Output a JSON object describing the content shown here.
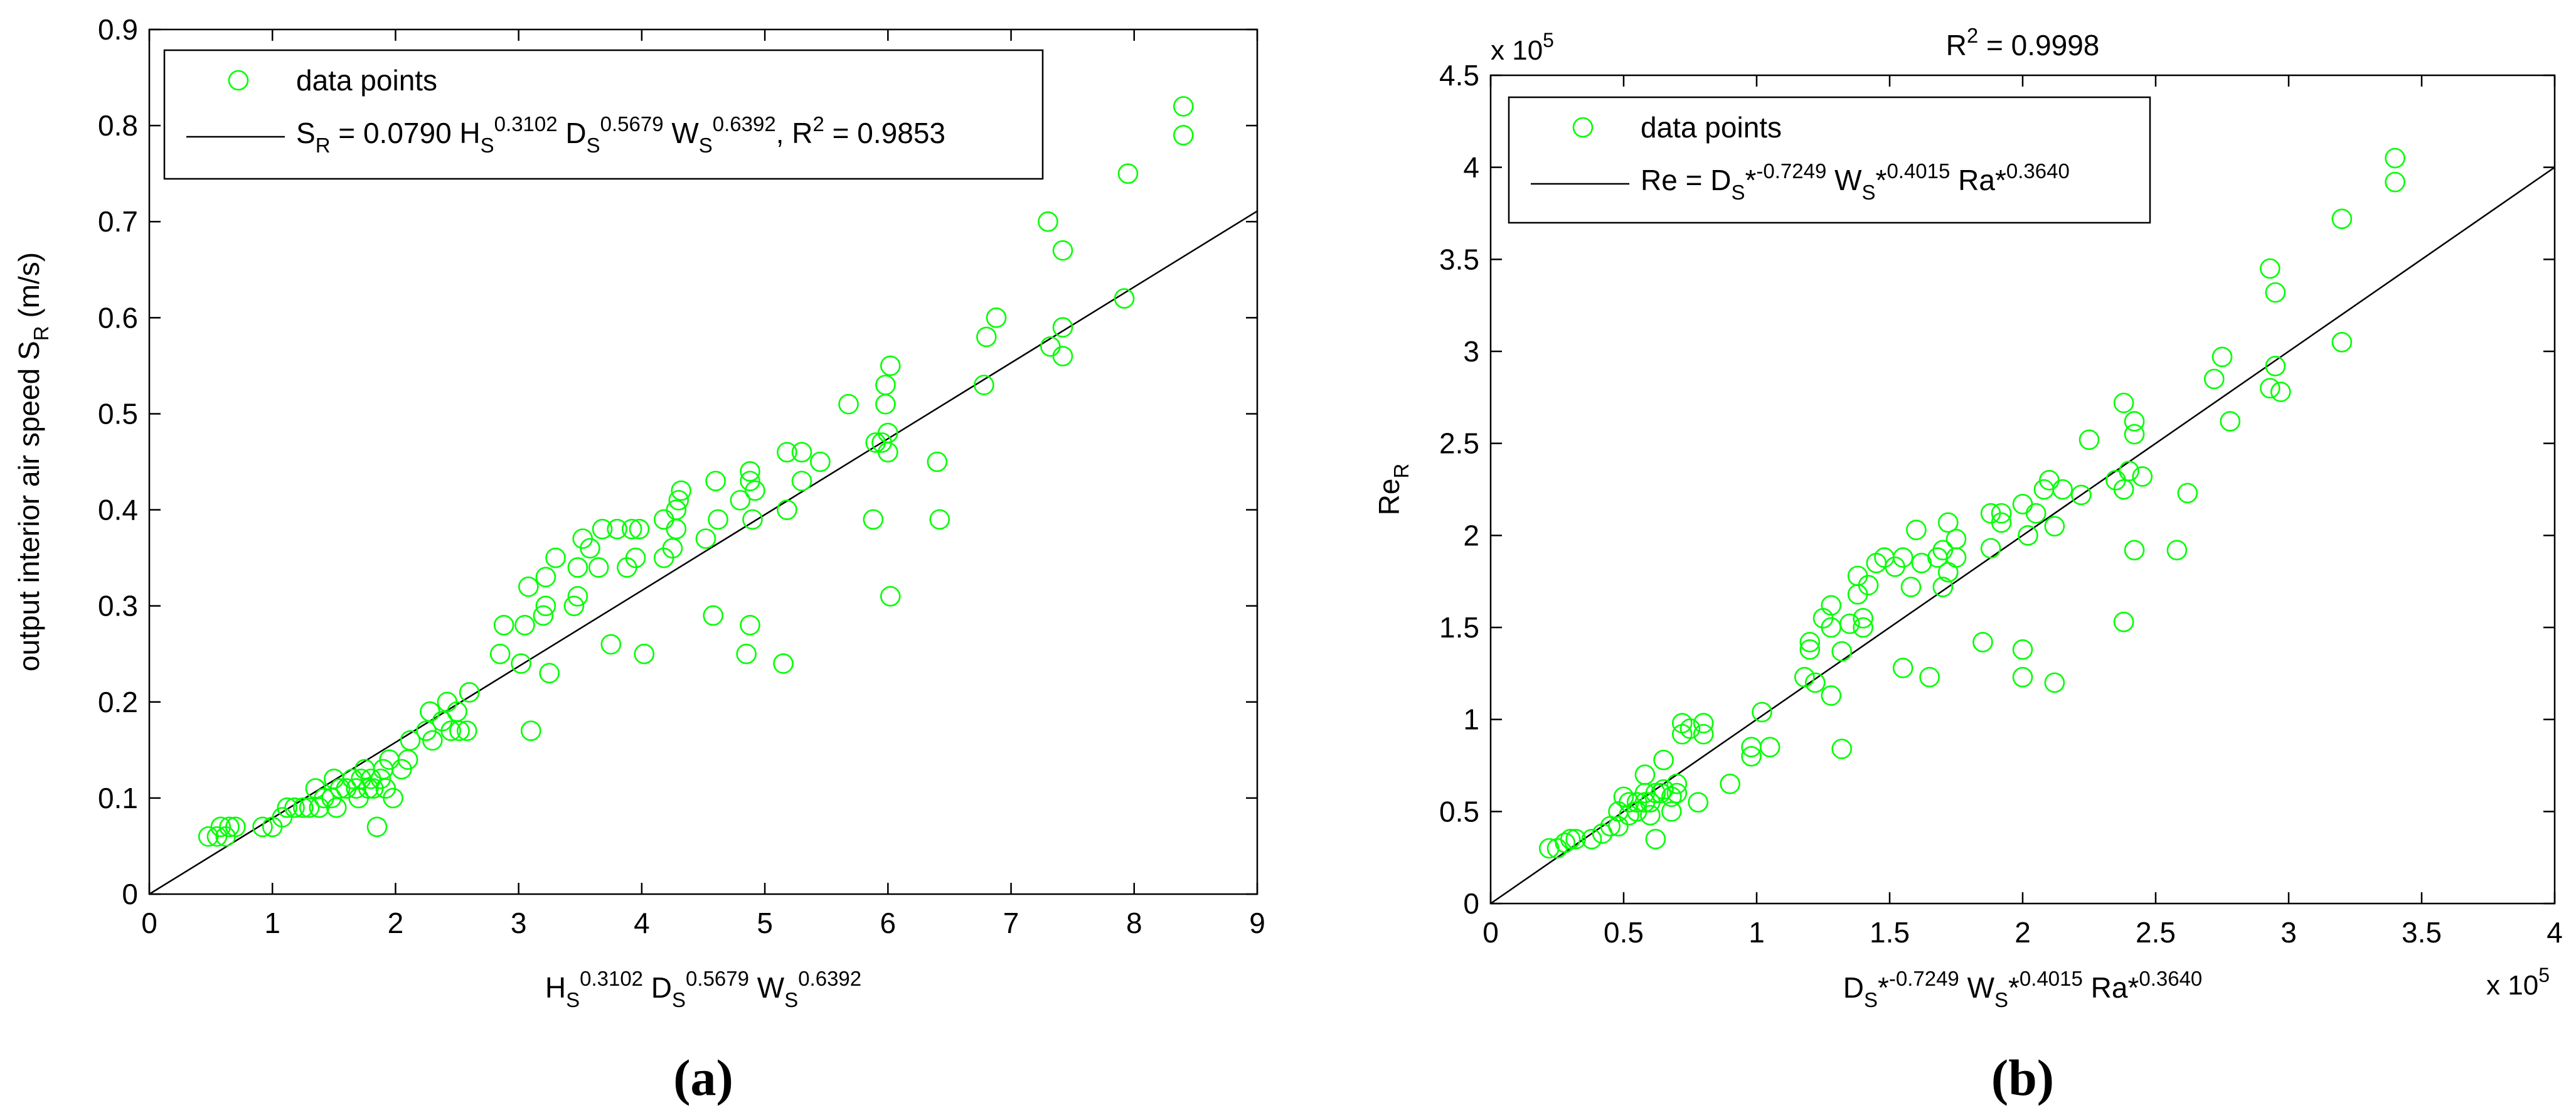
{
  "chart_data": [
    {
      "type": "scatter",
      "panel_label": "a",
      "title": "",
      "ylabel": {
        "text": "output interior air speed S",
        "sub": "R",
        "suffix": " (m/s)"
      },
      "xlabel": {
        "parts": [
          {
            "base": "H",
            "sub": "S",
            "sup": "0.3102"
          },
          {
            "base": " D",
            "sub": "S",
            "sup": "0.5679"
          },
          {
            "base": " W",
            "sub": "S",
            "sup": "0.6392"
          }
        ]
      },
      "xlim": [
        0,
        9
      ],
      "ylim": [
        0,
        0.9
      ],
      "xticks": [
        0,
        1,
        2,
        3,
        4,
        5,
        6,
        7,
        8,
        9
      ],
      "xtick_labels": [
        "0",
        "1",
        "2",
        "3",
        "4",
        "5",
        "6",
        "7",
        "8",
        "9"
      ],
      "yticks": [
        0,
        0.1,
        0.2,
        0.3,
        0.4,
        0.5,
        0.6,
        0.7,
        0.8,
        0.9
      ],
      "ytick_labels": [
        "0",
        "0.1",
        "0.2",
        "0.3",
        "0.4",
        "0.5",
        "0.6",
        "0.7",
        "0.8",
        "0.9"
      ],
      "xexponent": "",
      "yexponent": "",
      "legend": {
        "position": "top-left",
        "marker_label": "data points",
        "line_label": {
          "parts": [
            {
              "base": "S",
              "sub": "R",
              "sup": ""
            },
            {
              "base": " = 0.0790 H",
              "sub": "S",
              "sup": "0.3102"
            },
            {
              "base": " D",
              "sub": "S",
              "sup": "0.5679"
            },
            {
              "base": " W",
              "sub": "S",
              "sup": "0.6392"
            },
            {
              "base": ", R",
              "sub": "",
              "sup": "2"
            },
            {
              "base": " = 0.9853",
              "sub": "",
              "sup": ""
            }
          ]
        }
      },
      "marker_color": "#00ff00",
      "line_color": "#000000",
      "fit_line": {
        "x": [
          0,
          9
        ],
        "y": [
          0,
          0.711
        ]
      },
      "points": [
        [
          0.48,
          0.06
        ],
        [
          0.55,
          0.06
        ],
        [
          0.58,
          0.07
        ],
        [
          0.62,
          0.06
        ],
        [
          0.65,
          0.07
        ],
        [
          0.7,
          0.07
        ],
        [
          0.92,
          0.07
        ],
        [
          1.0,
          0.07
        ],
        [
          1.08,
          0.08
        ],
        [
          1.12,
          0.09
        ],
        [
          1.18,
          0.09
        ],
        [
          1.25,
          0.09
        ],
        [
          1.3,
          0.09
        ],
        [
          1.35,
          0.11
        ],
        [
          1.38,
          0.09
        ],
        [
          1.42,
          0.1
        ],
        [
          1.48,
          0.1
        ],
        [
          1.5,
          0.12
        ],
        [
          1.52,
          0.09
        ],
        [
          1.55,
          0.11
        ],
        [
          1.6,
          0.11
        ],
        [
          1.65,
          0.12
        ],
        [
          1.68,
          0.11
        ],
        [
          1.7,
          0.1
        ],
        [
          1.72,
          0.12
        ],
        [
          1.75,
          0.13
        ],
        [
          1.78,
          0.11
        ],
        [
          1.8,
          0.12
        ],
        [
          1.82,
          0.11
        ],
        [
          1.85,
          0.07
        ],
        [
          1.88,
          0.12
        ],
        [
          1.9,
          0.13
        ],
        [
          1.92,
          0.11
        ],
        [
          1.95,
          0.14
        ],
        [
          1.98,
          0.1
        ],
        [
          2.05,
          0.13
        ],
        [
          2.1,
          0.14
        ],
        [
          2.12,
          0.16
        ],
        [
          2.25,
          0.17
        ],
        [
          2.28,
          0.19
        ],
        [
          2.3,
          0.16
        ],
        [
          2.38,
          0.18
        ],
        [
          2.42,
          0.2
        ],
        [
          2.45,
          0.17
        ],
        [
          2.5,
          0.19
        ],
        [
          2.52,
          0.17
        ],
        [
          2.58,
          0.17
        ],
        [
          2.6,
          0.21
        ],
        [
          2.85,
          0.25
        ],
        [
          2.88,
          0.28
        ],
        [
          3.02,
          0.24
        ],
        [
          3.05,
          0.28
        ],
        [
          3.08,
          0.32
        ],
        [
          3.1,
          0.17
        ],
        [
          3.2,
          0.29
        ],
        [
          3.22,
          0.33
        ],
        [
          3.22,
          0.3
        ],
        [
          3.25,
          0.23
        ],
        [
          3.3,
          0.35
        ],
        [
          3.45,
          0.3
        ],
        [
          3.48,
          0.31
        ],
        [
          3.48,
          0.34
        ],
        [
          3.52,
          0.37
        ],
        [
          3.58,
          0.36
        ],
        [
          3.65,
          0.34
        ],
        [
          3.68,
          0.38
        ],
        [
          3.75,
          0.26
        ],
        [
          3.8,
          0.38
        ],
        [
          3.88,
          0.34
        ],
        [
          3.92,
          0.38
        ],
        [
          3.95,
          0.35
        ],
        [
          3.98,
          0.38
        ],
        [
          4.02,
          0.25
        ],
        [
          4.18,
          0.35
        ],
        [
          4.18,
          0.39
        ],
        [
          4.25,
          0.36
        ],
        [
          4.28,
          0.38
        ],
        [
          4.28,
          0.4
        ],
        [
          4.3,
          0.41
        ],
        [
          4.32,
          0.42
        ],
        [
          4.52,
          0.37
        ],
        [
          4.58,
          0.29
        ],
        [
          4.6,
          0.43
        ],
        [
          4.62,
          0.39
        ],
        [
          4.8,
          0.41
        ],
        [
          4.85,
          0.25
        ],
        [
          4.88,
          0.43
        ],
        [
          4.88,
          0.28
        ],
        [
          4.88,
          0.44
        ],
        [
          4.9,
          0.39
        ],
        [
          4.92,
          0.42
        ],
        [
          5.15,
          0.24
        ],
        [
          5.18,
          0.46
        ],
        [
          5.18,
          0.4
        ],
        [
          5.3,
          0.46
        ],
        [
          5.3,
          0.43
        ],
        [
          5.45,
          0.45
        ],
        [
          5.68,
          0.51
        ],
        [
          5.88,
          0.39
        ],
        [
          5.9,
          0.47
        ],
        [
          5.95,
          0.47
        ],
        [
          5.98,
          0.51
        ],
        [
          5.98,
          0.53
        ],
        [
          6.0,
          0.48
        ],
        [
          6.0,
          0.46
        ],
        [
          6.02,
          0.55
        ],
        [
          6.02,
          0.31
        ],
        [
          6.4,
          0.45
        ],
        [
          6.42,
          0.39
        ],
        [
          6.78,
          0.53
        ],
        [
          6.8,
          0.58
        ],
        [
          6.88,
          0.6
        ],
        [
          7.3,
          0.7
        ],
        [
          7.32,
          0.57
        ],
        [
          7.42,
          0.59
        ],
        [
          7.42,
          0.67
        ],
        [
          7.42,
          0.56
        ],
        [
          7.92,
          0.62
        ],
        [
          7.95,
          0.75
        ],
        [
          8.4,
          0.82
        ],
        [
          8.4,
          0.79
        ]
      ]
    },
    {
      "type": "scatter",
      "panel_label": "b",
      "title": {
        "base": "R",
        "sup": "2",
        "rest": " = 0.9998"
      },
      "ylabel": {
        "text": "Re",
        "sub": "R",
        "suffix": ""
      },
      "xlabel": {
        "parts": [
          {
            "base": "D",
            "sub": "S",
            "sup": ""
          },
          {
            "base": "*",
            "sub": "",
            "sup": "-0.7249"
          },
          {
            "base": " W",
            "sub": "S",
            "sup": ""
          },
          {
            "base": "*",
            "sub": "",
            "sup": "0.4015"
          },
          {
            "base": " Ra*",
            "sub": "",
            "sup": "0.3640"
          }
        ]
      },
      "xlim": [
        0,
        4
      ],
      "ylim": [
        0,
        4.5
      ],
      "xticks": [
        0,
        0.5,
        1,
        1.5,
        2,
        2.5,
        3,
        3.5,
        4
      ],
      "xtick_labels": [
        "0",
        "0.5",
        "1",
        "1.5",
        "2",
        "2.5",
        "3",
        "3.5",
        "4"
      ],
      "yticks": [
        0,
        0.5,
        1,
        1.5,
        2,
        2.5,
        3,
        3.5,
        4,
        4.5
      ],
      "ytick_labels": [
        "0",
        "0.5",
        "1",
        "1.5",
        "2",
        "2.5",
        "3",
        "3.5",
        "4",
        "4.5"
      ],
      "xexponent": {
        "base": "x 10",
        "sup": "5"
      },
      "yexponent": {
        "base": "x 10",
        "sup": "5"
      },
      "legend": {
        "position": "top-left",
        "marker_label": "data points",
        "line_label": {
          "parts": [
            {
              "base": "Re = D",
              "sub": "S",
              "sup": ""
            },
            {
              "base": "*",
              "sub": "",
              "sup": "-0.7249"
            },
            {
              "base": " W",
              "sub": "S",
              "sup": ""
            },
            {
              "base": "*",
              "sub": "",
              "sup": "0.4015"
            },
            {
              "base": " Ra*",
              "sub": "",
              "sup": "0.3640"
            }
          ]
        }
      },
      "marker_color": "#00ff00",
      "line_color": "#000000",
      "fit_line": {
        "x": [
          0,
          4
        ],
        "y": [
          0,
          4.0
        ]
      },
      "points": [
        [
          0.22,
          0.3
        ],
        [
          0.25,
          0.3
        ],
        [
          0.28,
          0.33
        ],
        [
          0.3,
          0.35
        ],
        [
          0.32,
          0.35
        ],
        [
          0.38,
          0.35
        ],
        [
          0.42,
          0.38
        ],
        [
          0.45,
          0.42
        ],
        [
          0.48,
          0.42
        ],
        [
          0.48,
          0.5
        ],
        [
          0.5,
          0.58
        ],
        [
          0.52,
          0.48
        ],
        [
          0.52,
          0.55
        ],
        [
          0.55,
          0.5
        ],
        [
          0.55,
          0.55
        ],
        [
          0.58,
          0.55
        ],
        [
          0.58,
          0.6
        ],
        [
          0.58,
          0.7
        ],
        [
          0.6,
          0.48
        ],
        [
          0.6,
          0.55
        ],
        [
          0.62,
          0.35
        ],
        [
          0.62,
          0.6
        ],
        [
          0.64,
          0.6
        ],
        [
          0.65,
          0.62
        ],
        [
          0.65,
          0.78
        ],
        [
          0.68,
          0.5
        ],
        [
          0.68,
          0.58
        ],
        [
          0.7,
          0.6
        ],
        [
          0.7,
          0.65
        ],
        [
          0.72,
          0.92
        ],
        [
          0.72,
          0.98
        ],
        [
          0.75,
          0.95
        ],
        [
          0.78,
          0.55
        ],
        [
          0.8,
          0.92
        ],
        [
          0.8,
          0.98
        ],
        [
          0.9,
          0.65
        ],
        [
          0.98,
          0.8
        ],
        [
          0.98,
          0.85
        ],
        [
          1.02,
          1.04
        ],
        [
          1.05,
          0.85
        ],
        [
          1.18,
          1.23
        ],
        [
          1.2,
          1.38
        ],
        [
          1.2,
          1.42
        ],
        [
          1.22,
          1.2
        ],
        [
          1.25,
          1.55
        ],
        [
          1.28,
          1.13
        ],
        [
          1.28,
          1.5
        ],
        [
          1.28,
          1.62
        ],
        [
          1.32,
          0.84
        ],
        [
          1.32,
          1.37
        ],
        [
          1.35,
          1.52
        ],
        [
          1.38,
          1.68
        ],
        [
          1.38,
          1.78
        ],
        [
          1.4,
          1.5
        ],
        [
          1.4,
          1.55
        ],
        [
          1.42,
          1.73
        ],
        [
          1.45,
          1.85
        ],
        [
          1.48,
          1.88
        ],
        [
          1.52,
          1.83
        ],
        [
          1.55,
          1.28
        ],
        [
          1.55,
          1.88
        ],
        [
          1.58,
          1.72
        ],
        [
          1.6,
          2.03
        ],
        [
          1.62,
          1.85
        ],
        [
          1.65,
          1.23
        ],
        [
          1.68,
          1.88
        ],
        [
          1.7,
          1.72
        ],
        [
          1.7,
          1.92
        ],
        [
          1.72,
          2.07
        ],
        [
          1.72,
          1.8
        ],
        [
          1.75,
          1.88
        ],
        [
          1.75,
          1.98
        ],
        [
          1.85,
          1.42
        ],
        [
          1.88,
          1.93
        ],
        [
          1.88,
          2.12
        ],
        [
          1.92,
          2.12
        ],
        [
          1.92,
          2.07
        ],
        [
          2.0,
          1.38
        ],
        [
          2.0,
          1.23
        ],
        [
          2.0,
          2.17
        ],
        [
          2.02,
          2.0
        ],
        [
          2.05,
          2.12
        ],
        [
          2.08,
          2.25
        ],
        [
          2.1,
          2.3
        ],
        [
          2.12,
          1.2
        ],
        [
          2.12,
          2.05
        ],
        [
          2.15,
          2.25
        ],
        [
          2.22,
          2.22
        ],
        [
          2.25,
          2.52
        ],
        [
          2.35,
          2.3
        ],
        [
          2.38,
          2.72
        ],
        [
          2.38,
          2.25
        ],
        [
          2.38,
          1.53
        ],
        [
          2.4,
          2.35
        ],
        [
          2.42,
          2.55
        ],
        [
          2.42,
          2.62
        ],
        [
          2.42,
          1.92
        ],
        [
          2.45,
          2.32
        ],
        [
          2.58,
          1.92
        ],
        [
          2.62,
          2.23
        ],
        [
          2.72,
          2.85
        ],
        [
          2.75,
          2.97
        ],
        [
          2.78,
          2.62
        ],
        [
          2.93,
          2.8
        ],
        [
          2.93,
          3.45
        ],
        [
          2.95,
          3.32
        ],
        [
          2.95,
          2.92
        ],
        [
          2.97,
          2.78
        ],
        [
          3.2,
          3.72
        ],
        [
          3.2,
          3.05
        ],
        [
          3.4,
          4.05
        ],
        [
          3.4,
          3.92
        ]
      ]
    }
  ]
}
